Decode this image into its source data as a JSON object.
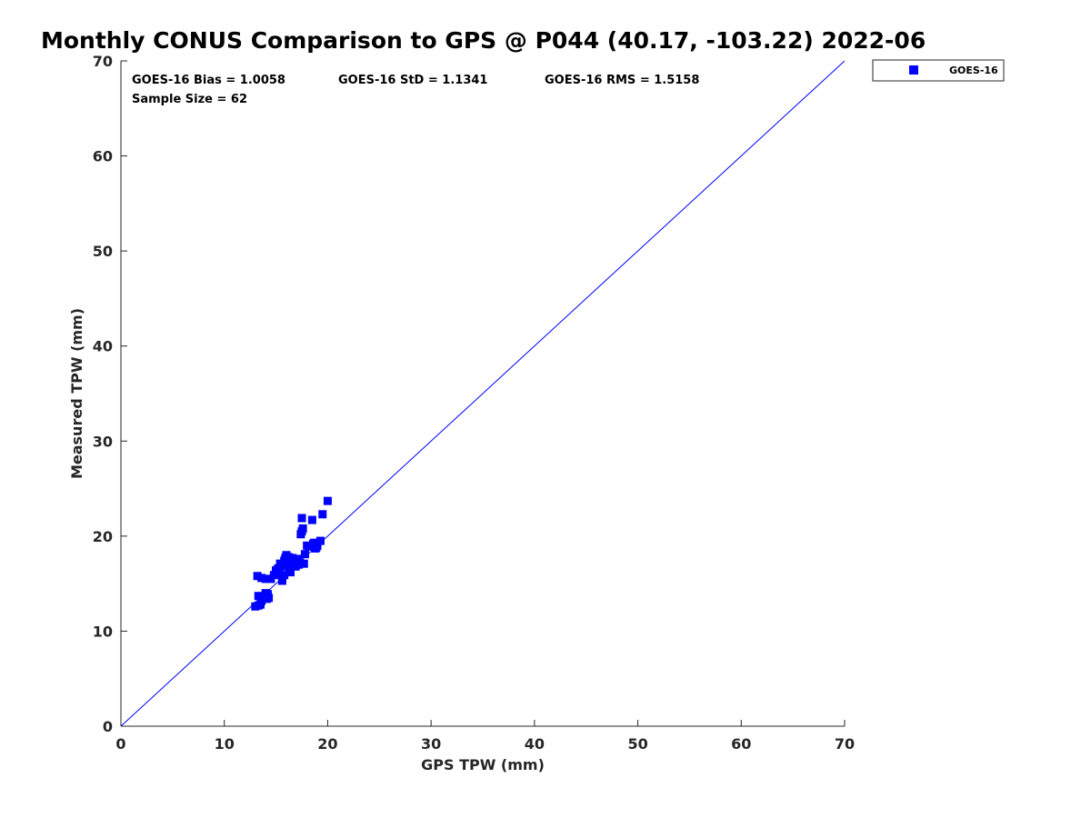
{
  "colors": {
    "series": "#0000ff",
    "axis": "#262626",
    "text": "#000000",
    "background": "#ffffff"
  },
  "chart_data": {
    "type": "scatter",
    "title": "Monthly CONUS Comparison to GPS @ P044 (40.17, -103.22) 2022-06",
    "xlabel": "GPS TPW (mm)",
    "ylabel": "Measured TPW (mm)",
    "xlim": [
      0,
      70
    ],
    "ylim": [
      0,
      70
    ],
    "xticks": [
      0,
      10,
      20,
      30,
      40,
      50,
      60,
      70
    ],
    "yticks": [
      0,
      10,
      20,
      30,
      40,
      50,
      60,
      70
    ],
    "grid": false,
    "legend_position": "outside top-right",
    "reference_line": {
      "x": [
        0,
        70
      ],
      "y": [
        0,
        70
      ]
    },
    "stats": [
      "GOES-16 Bias = 1.0058",
      "GOES-16 StD = 1.1341",
      "GOES-16 RMS = 1.5158",
      "Sample Size = 62"
    ],
    "series": [
      {
        "name": "GOES-16",
        "marker": "square",
        "x": [
          13.0,
          13.3,
          13.3,
          13.2,
          13.6,
          13.6,
          13.8,
          14.0,
          14.2,
          14.3,
          14.1,
          14.5,
          14.8,
          15.0,
          15.2,
          15.4,
          15.3,
          15.6,
          15.6,
          15.8,
          15.9,
          16.0,
          16.2,
          16.3,
          16.4,
          16.5,
          16.6,
          16.8,
          16.9,
          17.0,
          17.1,
          17.3,
          17.5,
          17.6,
          17.4,
          17.5,
          17.7,
          18.0,
          18.2,
          18.5,
          18.7,
          18.9,
          19.0,
          19.3,
          19.5,
          20.0,
          13.7,
          14.0,
          14.2,
          15.0,
          15.5,
          15.8,
          16.1,
          16.4,
          16.7,
          16.9,
          17.2,
          13.5,
          16.3,
          17.8,
          18.6,
          18.8
        ],
        "y": [
          12.6,
          12.7,
          13.7,
          15.8,
          13.2,
          15.6,
          13.6,
          15.5,
          13.8,
          13.5,
          13.4,
          15.5,
          15.9,
          16.2,
          16.6,
          17.1,
          16.0,
          15.3,
          15.7,
          17.4,
          17.7,
          18.0,
          17.8,
          16.6,
          16.2,
          17.2,
          17.7,
          17.0,
          17.4,
          17.5,
          17.6,
          17.2,
          21.9,
          20.8,
          20.2,
          20.5,
          17.1,
          19.0,
          18.9,
          21.7,
          19.3,
          18.8,
          19.0,
          19.5,
          22.3,
          23.7,
          13.5,
          14.0,
          13.9,
          16.4,
          16.8,
          15.9,
          17.0,
          17.6,
          17.3,
          16.8,
          17.0,
          12.8,
          16.6,
          18.1,
          19.2,
          18.7
        ]
      }
    ]
  }
}
